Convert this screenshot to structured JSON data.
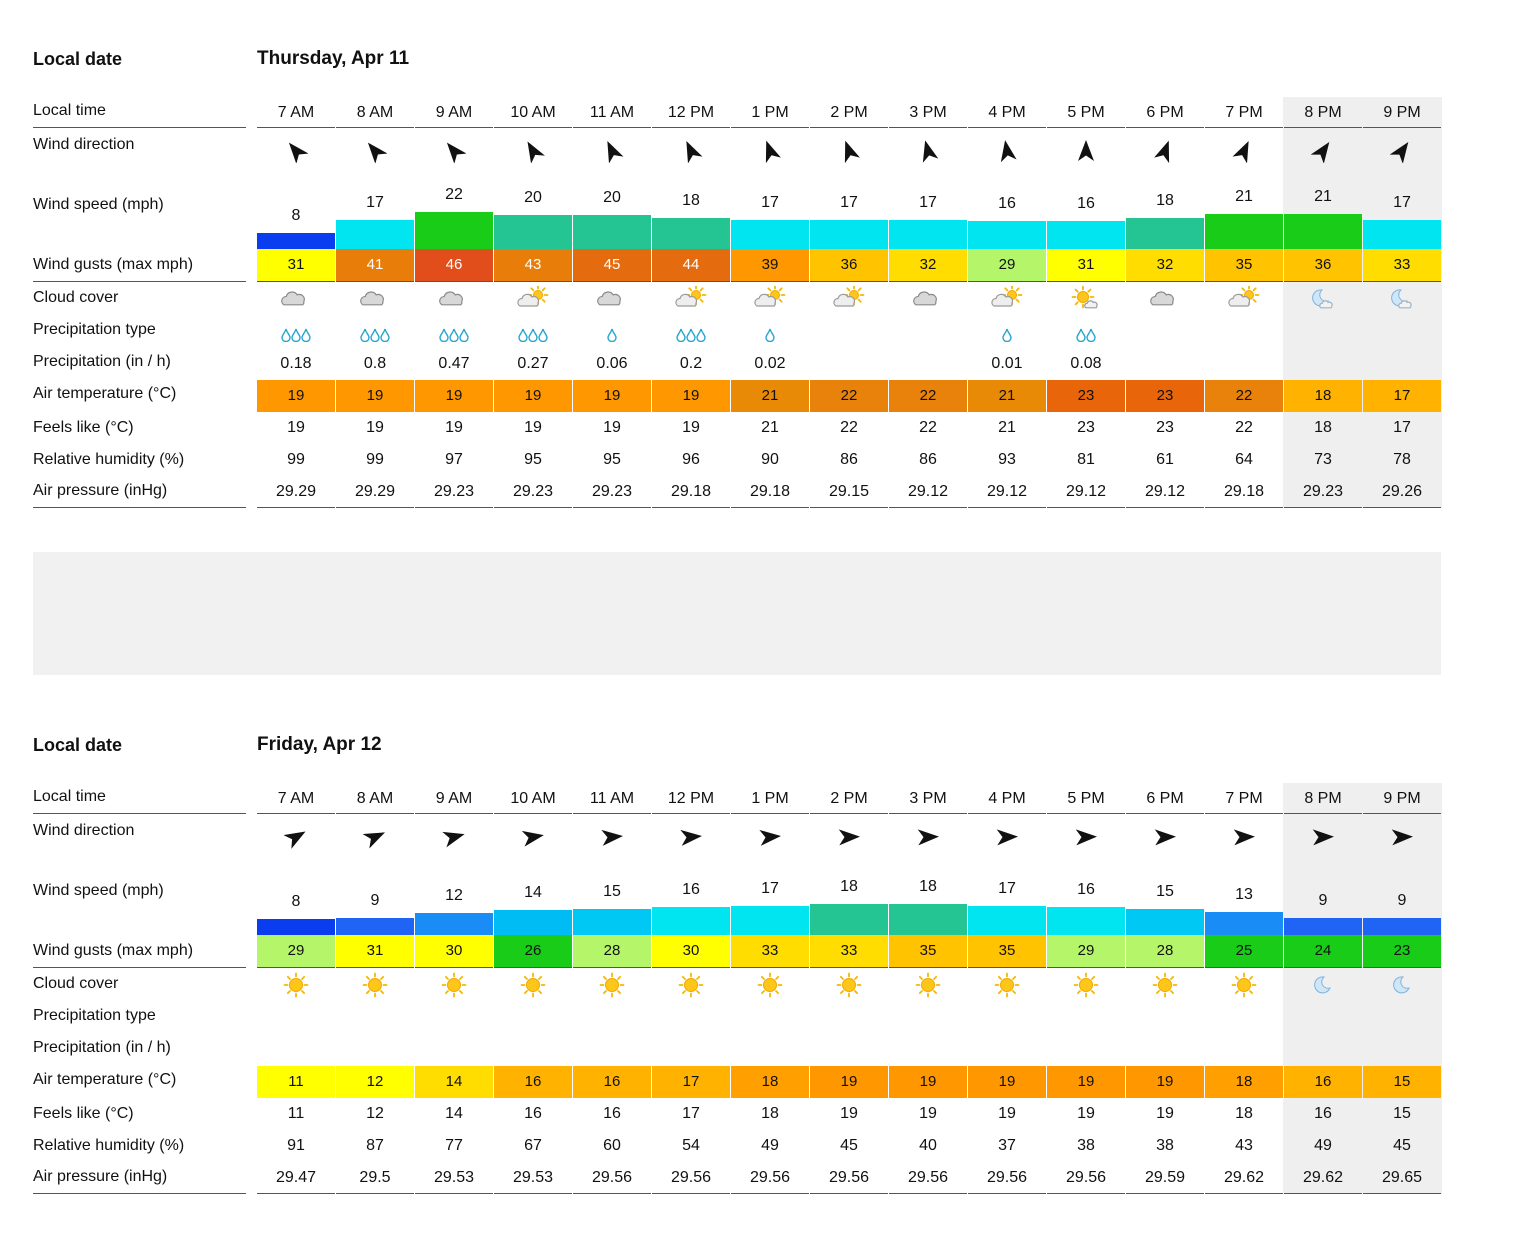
{
  "labels": {
    "local_date": "Local date",
    "local_time": "Local time",
    "wind_direction": "Wind direction",
    "wind_speed": "Wind speed (mph)",
    "wind_gusts": "Wind gusts (max mph)",
    "cloud_cover": "Cloud cover",
    "precip_type": "Precipitation type",
    "precip": "Precipitation (in / h)",
    "air_temp": "Air temperature (°C)",
    "feels_like": "Feels like (°C)",
    "humidity": "Relative humidity (%)",
    "pressure": "Air pressure (inHg)"
  },
  "days": [
    {
      "date": "Thursday, Apr 11",
      "hours": [
        {
          "time": "7 AM",
          "dir": -40,
          "speed": "8",
          "speed_color": "#0a3cf0",
          "gust": "31",
          "gust_color": "#ffff00",
          "gust_text": "#111",
          "cloud": "cloudy",
          "ptype": "rain3",
          "precip": "0.18",
          "temp": "19",
          "temp_color": "#ff9800",
          "feels": "19",
          "hum": "99",
          "pres": "29.29",
          "night": false
        },
        {
          "time": "8 AM",
          "dir": -40,
          "speed": "17",
          "speed_color": "#00e5f0",
          "gust": "41",
          "gust_color": "#e87d0a",
          "gust_text": "#fff",
          "cloud": "cloudy",
          "ptype": "rain3",
          "precip": "0.8",
          "temp": "19",
          "temp_color": "#ff9800",
          "feels": "19",
          "hum": "99",
          "pres": "29.29",
          "night": false
        },
        {
          "time": "9 AM",
          "dir": -40,
          "speed": "22",
          "speed_color": "#18cc18",
          "gust": "46",
          "gust_color": "#e24e1b",
          "gust_text": "#fff",
          "cloud": "cloudy",
          "ptype": "rain3",
          "precip": "0.47",
          "temp": "19",
          "temp_color": "#ff9800",
          "feels": "19",
          "hum": "97",
          "pres": "29.23",
          "night": false
        },
        {
          "time": "10 AM",
          "dir": -30,
          "speed": "20",
          "speed_color": "#25c493",
          "gust": "43",
          "gust_color": "#e87d0a",
          "gust_text": "#fff",
          "cloud": "partly",
          "ptype": "rain3",
          "precip": "0.27",
          "temp": "19",
          "temp_color": "#ff9800",
          "feels": "19",
          "hum": "95",
          "pres": "29.23",
          "night": false
        },
        {
          "time": "11 AM",
          "dir": -25,
          "speed": "20",
          "speed_color": "#25c493",
          "gust": "45",
          "gust_color": "#e56b0f",
          "gust_text": "#fff",
          "cloud": "cloudy",
          "ptype": "rain1",
          "precip": "0.06",
          "temp": "19",
          "temp_color": "#ff9800",
          "feels": "19",
          "hum": "95",
          "pres": "29.23",
          "night": false
        },
        {
          "time": "12 PM",
          "dir": -25,
          "speed": "18",
          "speed_color": "#25c493",
          "gust": "44",
          "gust_color": "#e56b0f",
          "gust_text": "#fff",
          "cloud": "partly",
          "ptype": "rain3",
          "precip": "0.2",
          "temp": "19",
          "temp_color": "#ff9800",
          "feels": "19",
          "hum": "96",
          "pres": "29.18",
          "night": false
        },
        {
          "time": "1 PM",
          "dir": -20,
          "speed": "17",
          "speed_color": "#00e5f0",
          "gust": "39",
          "gust_color": "#ff9800",
          "gust_text": "#111",
          "cloud": "partly",
          "ptype": "rain1",
          "precip": "0.02",
          "temp": "21",
          "temp_color": "#e88a06",
          "feels": "21",
          "hum": "90",
          "pres": "29.18",
          "night": false
        },
        {
          "time": "2 PM",
          "dir": -20,
          "speed": "17",
          "speed_color": "#00e5f0",
          "gust": "36",
          "gust_color": "#ffc300",
          "gust_text": "#111",
          "cloud": "partly",
          "ptype": "",
          "precip": "",
          "temp": "22",
          "temp_color": "#e8820a",
          "feels": "22",
          "hum": "86",
          "pres": "29.15",
          "night": false
        },
        {
          "time": "3 PM",
          "dir": -15,
          "speed": "17",
          "speed_color": "#00e5f0",
          "gust": "32",
          "gust_color": "#ffdd00",
          "gust_text": "#111",
          "cloud": "cloudy",
          "ptype": "",
          "precip": "",
          "temp": "22",
          "temp_color": "#e8820a",
          "feels": "22",
          "hum": "86",
          "pres": "29.12",
          "night": false
        },
        {
          "time": "4 PM",
          "dir": -10,
          "speed": "16",
          "speed_color": "#00e5f0",
          "gust": "29",
          "gust_color": "#b5f56a",
          "gust_text": "#111",
          "cloud": "partly",
          "ptype": "rain1",
          "precip": "0.01",
          "temp": "21",
          "temp_color": "#e88a06",
          "feels": "21",
          "hum": "93",
          "pres": "29.12",
          "night": false
        },
        {
          "time": "5 PM",
          "dir": 0,
          "speed": "16",
          "speed_color": "#00e5f0",
          "gust": "31",
          "gust_color": "#ffff00",
          "gust_text": "#111",
          "cloud": "sunny-cloud",
          "ptype": "rain2",
          "precip": "0.08",
          "temp": "23",
          "temp_color": "#e8650a",
          "feels": "23",
          "hum": "81",
          "pres": "29.12",
          "night": false
        },
        {
          "time": "6 PM",
          "dir": 20,
          "speed": "18",
          "speed_color": "#25c493",
          "gust": "32",
          "gust_color": "#ffdd00",
          "gust_text": "#111",
          "cloud": "cloudy",
          "ptype": "",
          "precip": "",
          "temp": "23",
          "temp_color": "#e8650a",
          "feels": "23",
          "hum": "61",
          "pres": "29.12",
          "night": false
        },
        {
          "time": "7 PM",
          "dir": 25,
          "speed": "21",
          "speed_color": "#18cc18",
          "gust": "35",
          "gust_color": "#ffc300",
          "gust_text": "#111",
          "cloud": "partly",
          "ptype": "",
          "precip": "",
          "temp": "22",
          "temp_color": "#e8820a",
          "feels": "22",
          "hum": "64",
          "pres": "29.18",
          "night": false
        },
        {
          "time": "8 PM",
          "dir": 35,
          "speed": "21",
          "speed_color": "#18cc18",
          "gust": "36",
          "gust_color": "#ffc300",
          "gust_text": "#111",
          "cloud": "moon-cloud",
          "ptype": "",
          "precip": "",
          "temp": "18",
          "temp_color": "#ffb300",
          "feels": "18",
          "hum": "73",
          "pres": "29.23",
          "night": true
        },
        {
          "time": "9 PM",
          "dir": 35,
          "speed": "17",
          "speed_color": "#00e5f0",
          "gust": "33",
          "gust_color": "#ffdd00",
          "gust_text": "#111",
          "cloud": "moon-cloud",
          "ptype": "",
          "precip": "",
          "temp": "17",
          "temp_color": "#ffb300",
          "feels": "17",
          "hum": "78",
          "pres": "29.26",
          "night": true
        }
      ]
    },
    {
      "date": "Friday, Apr 12",
      "hours": [
        {
          "time": "7 AM",
          "dir": 60,
          "speed": "8",
          "speed_color": "#0a3cf0",
          "gust": "29",
          "gust_color": "#b5f56a",
          "gust_text": "#111",
          "cloud": "sun",
          "ptype": "",
          "precip": "",
          "temp": "11",
          "temp_color": "#ffff00",
          "feels": "11",
          "hum": "91",
          "pres": "29.47",
          "night": false
        },
        {
          "time": "8 AM",
          "dir": 65,
          "speed": "9",
          "speed_color": "#1f64f5",
          "gust": "31",
          "gust_color": "#ffff00",
          "gust_text": "#111",
          "cloud": "sun",
          "ptype": "",
          "precip": "",
          "temp": "12",
          "temp_color": "#ffff00",
          "feels": "12",
          "hum": "87",
          "pres": "29.5",
          "night": false
        },
        {
          "time": "9 AM",
          "dir": 75,
          "speed": "12",
          "speed_color": "#1a8cf5",
          "gust": "30",
          "gust_color": "#ffff00",
          "gust_text": "#111",
          "cloud": "sun",
          "ptype": "",
          "precip": "",
          "temp": "14",
          "temp_color": "#ffdd00",
          "feels": "14",
          "hum": "77",
          "pres": "29.53",
          "night": false
        },
        {
          "time": "10 AM",
          "dir": 80,
          "speed": "14",
          "speed_color": "#00bcf5",
          "gust": "26",
          "gust_color": "#18cc18",
          "gust_text": "#111",
          "cloud": "sun",
          "ptype": "",
          "precip": "",
          "temp": "16",
          "temp_color": "#ffb300",
          "feels": "16",
          "hum": "67",
          "pres": "29.53",
          "night": false
        },
        {
          "time": "11 AM",
          "dir": 85,
          "speed": "15",
          "speed_color": "#00c8f5",
          "gust": "28",
          "gust_color": "#b5f56a",
          "gust_text": "#111",
          "cloud": "sun",
          "ptype": "",
          "precip": "",
          "temp": "16",
          "temp_color": "#ffb300",
          "feels": "16",
          "hum": "60",
          "pres": "29.56",
          "night": false
        },
        {
          "time": "12 PM",
          "dir": 85,
          "speed": "16",
          "speed_color": "#00e5f0",
          "gust": "30",
          "gust_color": "#ffff00",
          "gust_text": "#111",
          "cloud": "sun",
          "ptype": "",
          "precip": "",
          "temp": "17",
          "temp_color": "#ffb300",
          "feels": "17",
          "hum": "54",
          "pres": "29.56",
          "night": false
        },
        {
          "time": "1 PM",
          "dir": 85,
          "speed": "17",
          "speed_color": "#00e5f0",
          "gust": "33",
          "gust_color": "#ffdd00",
          "gust_text": "#111",
          "cloud": "sun",
          "ptype": "",
          "precip": "",
          "temp": "18",
          "temp_color": "#ffa000",
          "feels": "18",
          "hum": "49",
          "pres": "29.56",
          "night": false
        },
        {
          "time": "2 PM",
          "dir": 88,
          "speed": "18",
          "speed_color": "#25c493",
          "gust": "33",
          "gust_color": "#ffdd00",
          "gust_text": "#111",
          "cloud": "sun",
          "ptype": "",
          "precip": "",
          "temp": "19",
          "temp_color": "#ff9800",
          "feels": "19",
          "hum": "45",
          "pres": "29.56",
          "night": false
        },
        {
          "time": "3 PM",
          "dir": 88,
          "speed": "18",
          "speed_color": "#25c493",
          "gust": "35",
          "gust_color": "#ffc300",
          "gust_text": "#111",
          "cloud": "sun",
          "ptype": "",
          "precip": "",
          "temp": "19",
          "temp_color": "#ff9800",
          "feels": "19",
          "hum": "40",
          "pres": "29.56",
          "night": false
        },
        {
          "time": "4 PM",
          "dir": 88,
          "speed": "17",
          "speed_color": "#00e5f0",
          "gust": "35",
          "gust_color": "#ffc300",
          "gust_text": "#111",
          "cloud": "sun",
          "ptype": "",
          "precip": "",
          "temp": "19",
          "temp_color": "#ff9800",
          "feels": "19",
          "hum": "37",
          "pres": "29.56",
          "night": false
        },
        {
          "time": "5 PM",
          "dir": 88,
          "speed": "16",
          "speed_color": "#00e5f0",
          "gust": "29",
          "gust_color": "#b5f56a",
          "gust_text": "#111",
          "cloud": "sun",
          "ptype": "",
          "precip": "",
          "temp": "19",
          "temp_color": "#ff9800",
          "feels": "19",
          "hum": "38",
          "pres": "29.56",
          "night": false
        },
        {
          "time": "6 PM",
          "dir": 88,
          "speed": "15",
          "speed_color": "#00c8f5",
          "gust": "28",
          "gust_color": "#b5f56a",
          "gust_text": "#111",
          "cloud": "sun",
          "ptype": "",
          "precip": "",
          "temp": "19",
          "temp_color": "#ff9800",
          "feels": "19",
          "hum": "38",
          "pres": "29.59",
          "night": false
        },
        {
          "time": "7 PM",
          "dir": 88,
          "speed": "13",
          "speed_color": "#1a8cf5",
          "gust": "25",
          "gust_color": "#18cc18",
          "gust_text": "#111",
          "cloud": "sun",
          "ptype": "",
          "precip": "",
          "temp": "18",
          "temp_color": "#ffa000",
          "feels": "18",
          "hum": "43",
          "pres": "29.62",
          "night": false
        },
        {
          "time": "8 PM",
          "dir": 88,
          "speed": "9",
          "speed_color": "#1f64f5",
          "gust": "24",
          "gust_color": "#18cc18",
          "gust_text": "#111",
          "cloud": "moon",
          "ptype": "",
          "precip": "",
          "temp": "16",
          "temp_color": "#ffb300",
          "feels": "16",
          "hum": "49",
          "pres": "29.62",
          "night": true
        },
        {
          "time": "9 PM",
          "dir": 88,
          "speed": "9",
          "speed_color": "#1f64f5",
          "gust": "23",
          "gust_color": "#18cc18",
          "gust_text": "#111",
          "cloud": "moon",
          "ptype": "",
          "precip": "",
          "temp": "15",
          "temp_color": "#ffb300",
          "feels": "15",
          "hum": "45",
          "pres": "29.65",
          "night": true
        }
      ]
    }
  ]
}
